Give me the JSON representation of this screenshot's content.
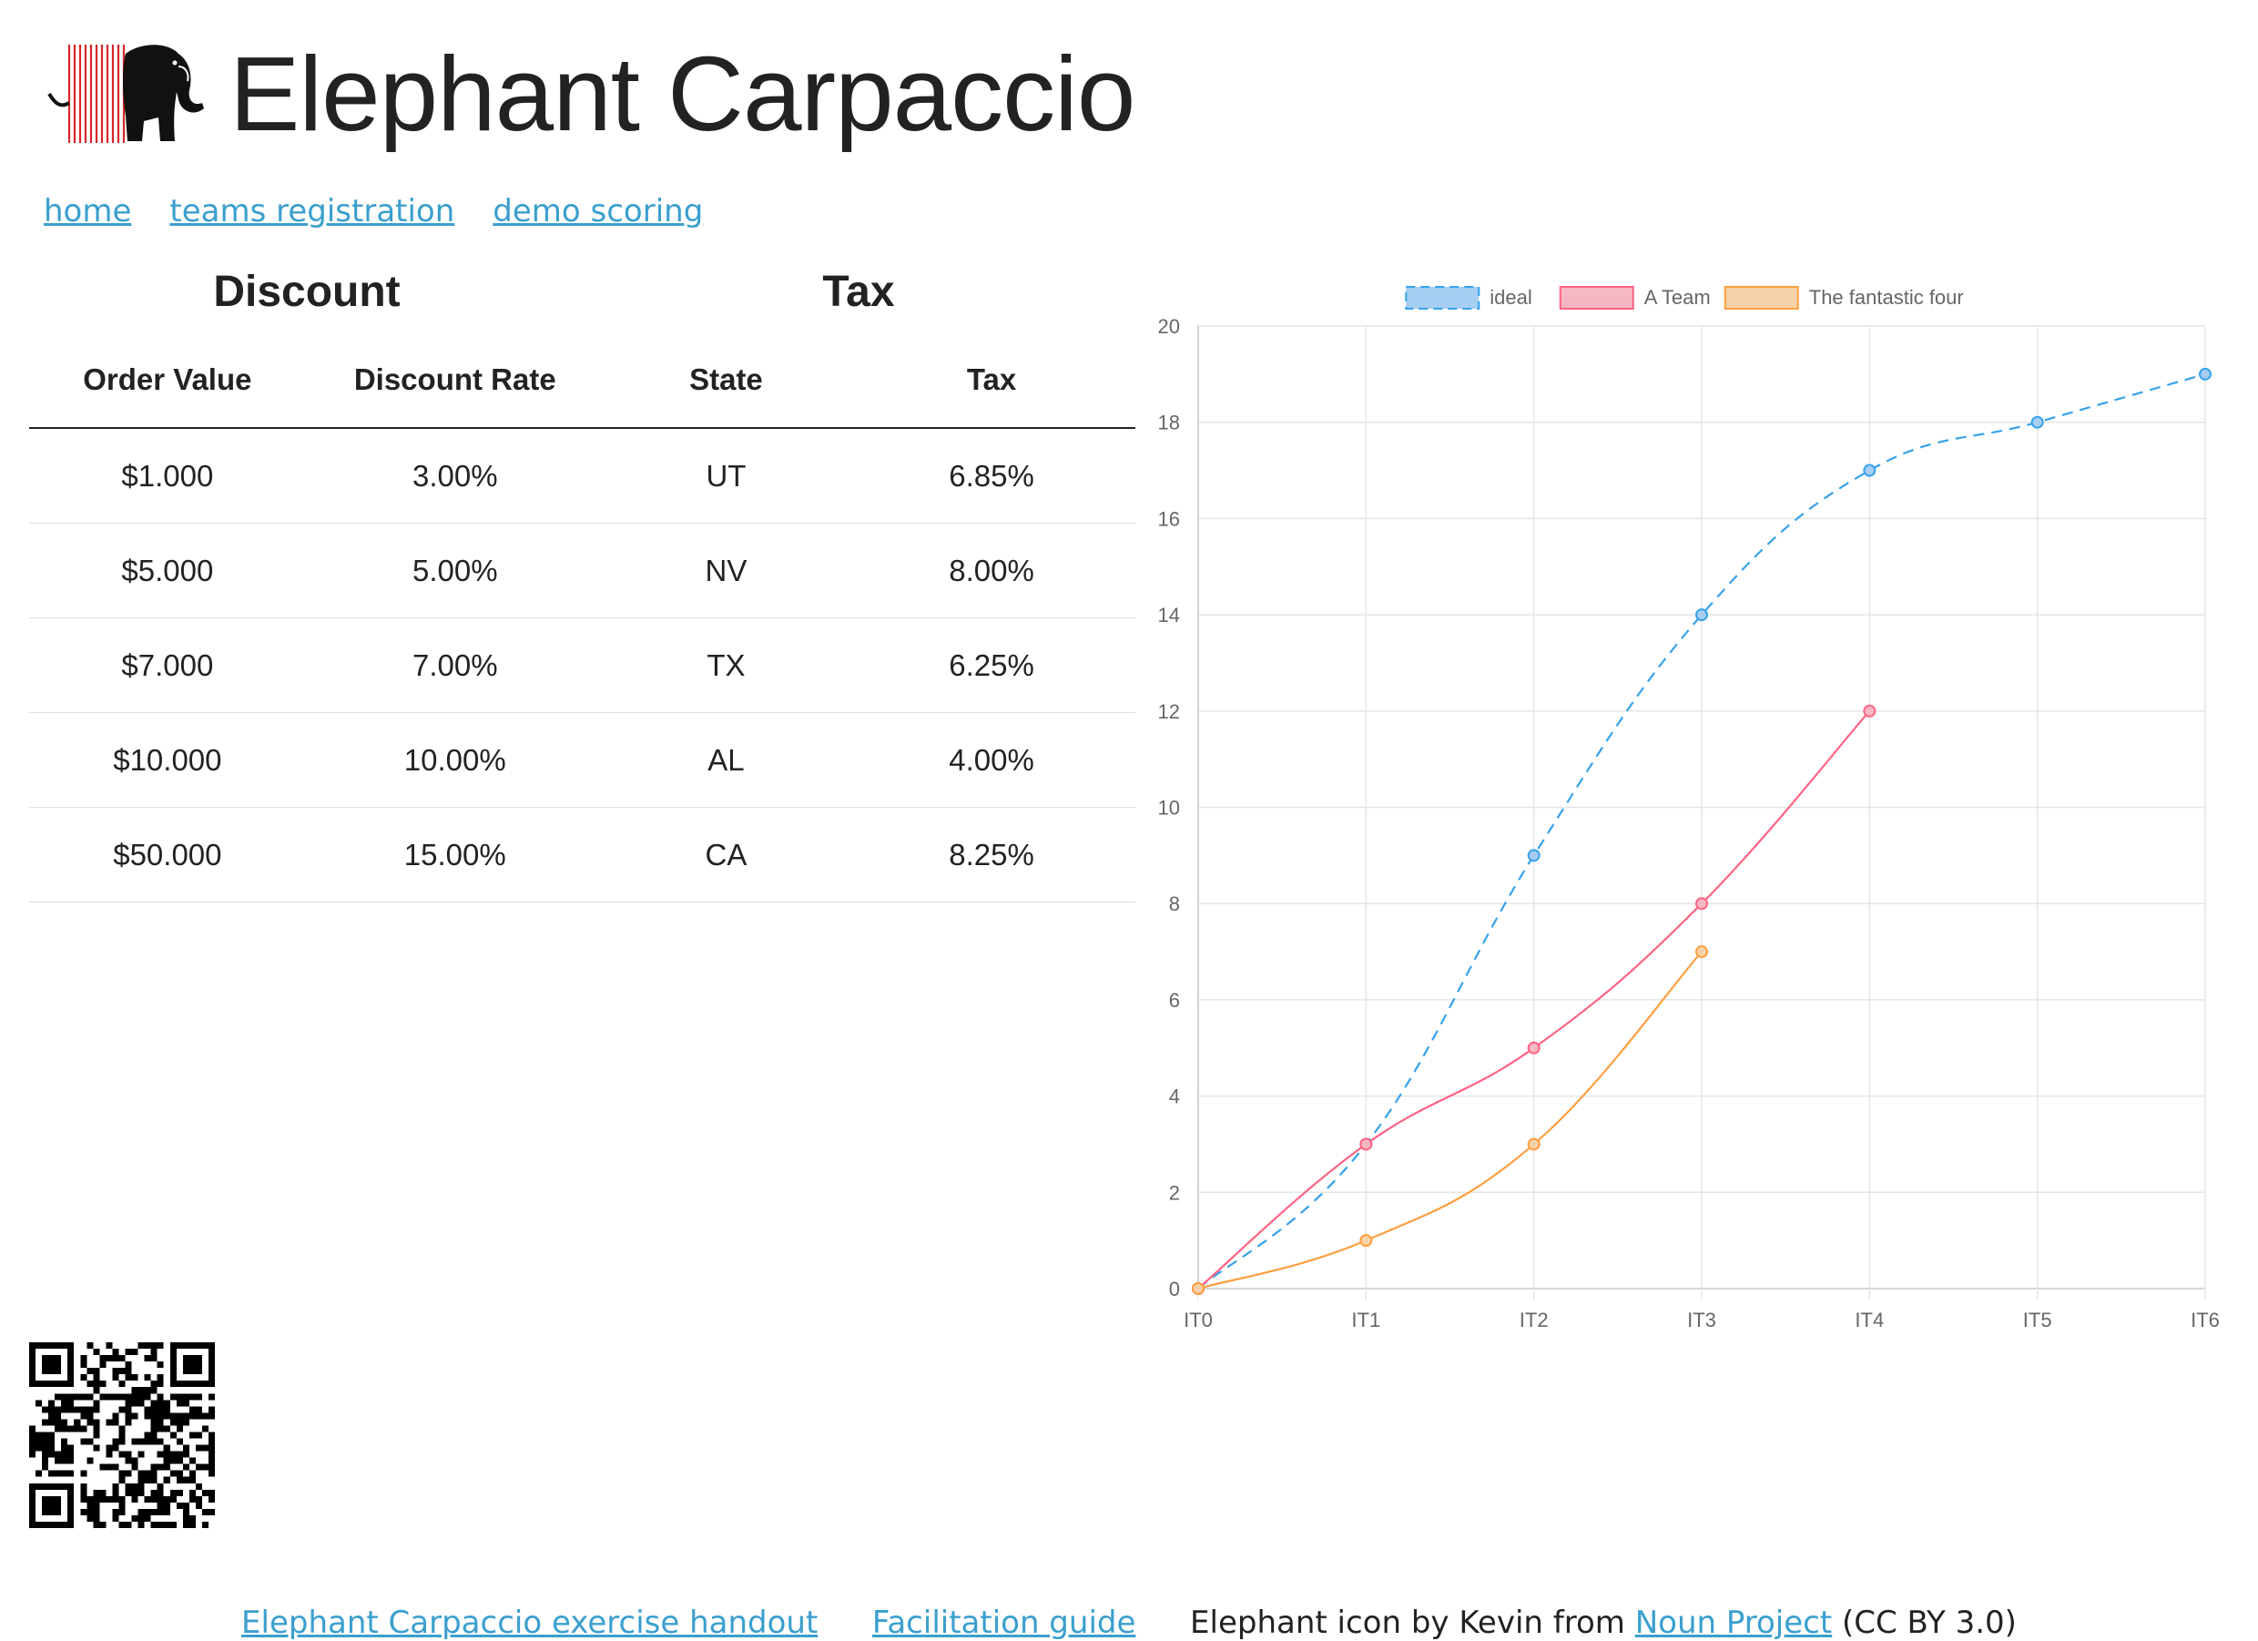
{
  "header": {
    "title": "Elephant Carpaccio"
  },
  "nav": {
    "items": [
      {
        "label": "home"
      },
      {
        "label": "teams registration"
      },
      {
        "label": "demo scoring"
      }
    ]
  },
  "discount": {
    "heading": "Discount",
    "columns": [
      "Order Value",
      "Discount Rate"
    ],
    "rows": [
      {
        "order_value": "$1.000",
        "rate": "3.00%"
      },
      {
        "order_value": "$5.000",
        "rate": "5.00%"
      },
      {
        "order_value": "$7.000",
        "rate": "7.00%"
      },
      {
        "order_value": "$10.000",
        "rate": "10.00%"
      },
      {
        "order_value": "$50.000",
        "rate": "15.00%"
      }
    ]
  },
  "tax": {
    "heading": "Tax",
    "columns": [
      "State",
      "Tax"
    ],
    "rows": [
      {
        "state": "UT",
        "tax": "6.85%"
      },
      {
        "state": "NV",
        "tax": "8.00%"
      },
      {
        "state": "TX",
        "tax": "6.25%"
      },
      {
        "state": "AL",
        "tax": "4.00%"
      },
      {
        "state": "CA",
        "tax": "8.25%"
      }
    ]
  },
  "chart_data": {
    "type": "line",
    "categories": [
      "IT0",
      "IT1",
      "IT2",
      "IT3",
      "IT4",
      "IT5",
      "IT6"
    ],
    "ylim": [
      0,
      20
    ],
    "yticks": [
      0,
      2,
      4,
      6,
      8,
      10,
      12,
      14,
      16,
      18,
      20
    ],
    "grid": true,
    "legend_position": "top",
    "series": [
      {
        "name": "ideal",
        "values": [
          0,
          3,
          9,
          14,
          17,
          18,
          19
        ],
        "color": "#36a2eb",
        "fill": "#a6cdf2",
        "dashed": true
      },
      {
        "name": "A Team",
        "values": [
          0,
          3,
          5,
          8,
          12,
          null,
          null
        ],
        "color": "#ff6384",
        "fill": "#f5b7c4",
        "dashed": false
      },
      {
        "name": "The fantastic four",
        "values": [
          0,
          1,
          3,
          7,
          null,
          null,
          null
        ],
        "color": "#ff9f40",
        "fill": "#f7d2a8",
        "dashed": false
      }
    ]
  },
  "footer": {
    "handout": "Elephant Carpaccio exercise handout",
    "guide": "Facilitation guide",
    "credit_prefix": "Elephant icon by Kevin from",
    "noun_project": "Noun Project",
    "license": "(CC BY 3.0)"
  }
}
